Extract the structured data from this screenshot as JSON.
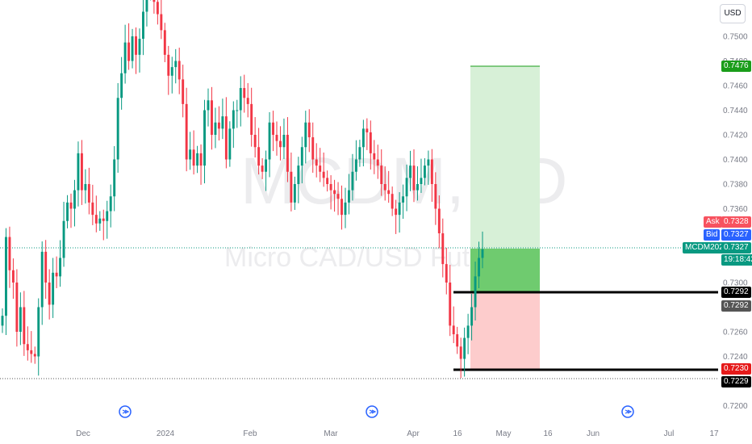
{
  "watermark": {
    "symbol": "MCDM, 1D",
    "name": "Micro CAD/USD Futures"
  },
  "currency_button": "USD",
  "price_axis": {
    "ticks": [
      "0.7500",
      "0.7480",
      "0.7460",
      "0.7440",
      "0.7420",
      "0.7400",
      "0.7380",
      "0.7360",
      "0.7340",
      "0.7320",
      "0.7300",
      "0.7280",
      "0.7260",
      "0.7240",
      "0.7220",
      "0.7200"
    ]
  },
  "time_axis": {
    "labels": [
      "Dec",
      "2024",
      "Feb",
      "Mar",
      "Apr",
      "16",
      "May",
      "16",
      "Jun",
      "Jul",
      "17"
    ]
  },
  "price_tags": {
    "target": "0.7476",
    "ask_label": "Ask",
    "ask": "0.7328",
    "bid_label": "Bid",
    "bid": "0.7327",
    "symbol": "MCDM2024",
    "last": "0.7327",
    "countdown": "19:18:42",
    "entry": "0.7292",
    "entry2": "0.7292",
    "stop": "0.7230",
    "low": "0.7229"
  },
  "colors": {
    "up": "#089981",
    "down": "#f23645",
    "target_zone": "#d7f0d7",
    "profit_zone": "#6fcb6f",
    "loss_zone": "#fdcccc",
    "ask": "#f7525f",
    "bid": "#2962ff",
    "last": "#089981",
    "stop": "#e51a1a",
    "target": "#1a9d1a"
  },
  "chart_data": {
    "type": "candlestick",
    "title": "Micro CAD/USD Futures",
    "symbol": "MCDM2024",
    "timeframe": "1D",
    "currency": "USD",
    "ylim": [
      0.7195,
      0.7525
    ],
    "x_axis_labels": [
      "Dec",
      "2024",
      "Feb",
      "Mar",
      "Apr",
      "16",
      "May",
      "16",
      "Jun",
      "Jul",
      "17"
    ],
    "last_price": 0.7327,
    "ask": 0.7328,
    "bid": 0.7327,
    "position": {
      "type": "long",
      "entry": 0.7292,
      "target": 0.7476,
      "stop": 0.723
    },
    "horizontal_lines": [
      0.7292,
      0.723
    ],
    "event_markers": 3,
    "candles_close": [
      0.7273,
      0.7337,
      0.731,
      0.73,
      0.726,
      0.728,
      0.725,
      0.7245,
      0.7242,
      0.724,
      0.728,
      0.7325,
      0.73,
      0.7282,
      0.7308,
      0.7305,
      0.732,
      0.735,
      0.7365,
      0.736,
      0.7375,
      0.7405,
      0.7375,
      0.738,
      0.7365,
      0.7355,
      0.7348,
      0.7352,
      0.735,
      0.7358,
      0.737,
      0.74,
      0.745,
      0.747,
      0.7495,
      0.748,
      0.75,
      0.7485,
      0.7498,
      0.752,
      0.754,
      0.756,
      0.7528,
      0.7518,
      0.7505,
      0.7485,
      0.7468,
      0.7475,
      0.748,
      0.7465,
      0.7445,
      0.74,
      0.7408,
      0.7395,
      0.7405,
      0.7395,
      0.744,
      0.7448,
      0.742,
      0.743,
      0.7425,
      0.7435,
      0.74,
      0.7425,
      0.744,
      0.744,
      0.7458,
      0.745,
      0.7445,
      0.742,
      0.741,
      0.7395,
      0.739,
      0.74,
      0.743,
      0.742,
      0.7415,
      0.741,
      0.742,
      0.739,
      0.7365,
      0.738,
      0.7395,
      0.741,
      0.743,
      0.7418,
      0.74,
      0.7395,
      0.739,
      0.7385,
      0.738,
      0.7375,
      0.7372,
      0.7368,
      0.7355,
      0.7365,
      0.7375,
      0.739,
      0.74,
      0.741,
      0.7425,
      0.7422,
      0.7405,
      0.74,
      0.7395,
      0.738,
      0.7375,
      0.7372,
      0.736,
      0.7355,
      0.7365,
      0.737,
      0.7385,
      0.7395,
      0.7375,
      0.738,
      0.7385,
      0.7395,
      0.74,
      0.738,
      0.736,
      0.734,
      0.7315,
      0.73,
      0.7265,
      0.7258,
      0.7248,
      0.7238,
      0.7255,
      0.7265,
      0.728,
      0.7305,
      0.732,
      0.7327
    ]
  }
}
